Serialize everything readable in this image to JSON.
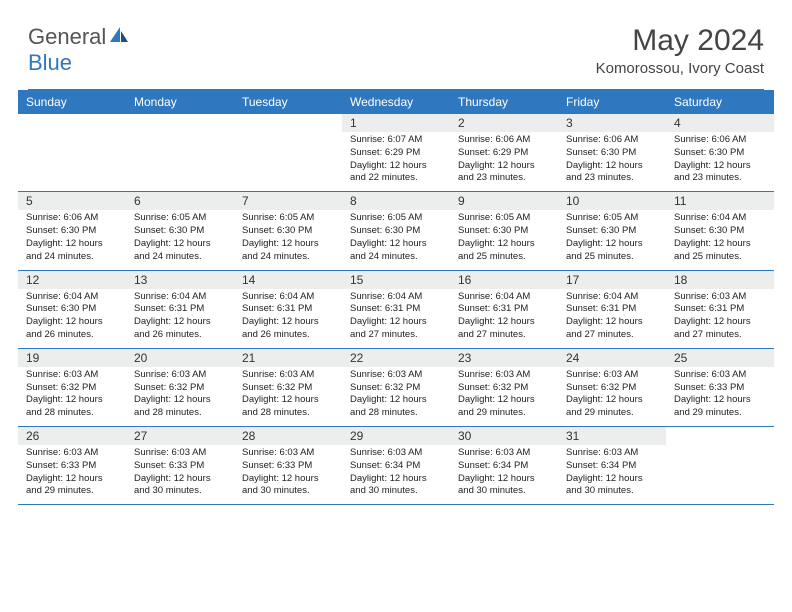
{
  "brand": {
    "part1": "General",
    "part2": "Blue"
  },
  "title": "May 2024",
  "location": "Komorossou, Ivory Coast",
  "colors": {
    "accent": "#2f78bf",
    "header_bg": "#2f78bf",
    "header_fg": "#ffffff",
    "daynum_bg": "#eceded",
    "text": "#222222",
    "title_text": "#444444",
    "divider": "#2f78bf"
  },
  "day_headers": [
    "Sunday",
    "Monday",
    "Tuesday",
    "Wednesday",
    "Thursday",
    "Friday",
    "Saturday"
  ],
  "weeks": [
    [
      {
        "n": "",
        "sr": "",
        "ss": "",
        "dl": ""
      },
      {
        "n": "",
        "sr": "",
        "ss": "",
        "dl": ""
      },
      {
        "n": "",
        "sr": "",
        "ss": "",
        "dl": ""
      },
      {
        "n": "1",
        "sr": "6:07 AM",
        "ss": "6:29 PM",
        "dl": "12 hours and 22 minutes."
      },
      {
        "n": "2",
        "sr": "6:06 AM",
        "ss": "6:29 PM",
        "dl": "12 hours and 23 minutes."
      },
      {
        "n": "3",
        "sr": "6:06 AM",
        "ss": "6:30 PM",
        "dl": "12 hours and 23 minutes."
      },
      {
        "n": "4",
        "sr": "6:06 AM",
        "ss": "6:30 PM",
        "dl": "12 hours and 23 minutes."
      }
    ],
    [
      {
        "n": "5",
        "sr": "6:06 AM",
        "ss": "6:30 PM",
        "dl": "12 hours and 24 minutes."
      },
      {
        "n": "6",
        "sr": "6:05 AM",
        "ss": "6:30 PM",
        "dl": "12 hours and 24 minutes."
      },
      {
        "n": "7",
        "sr": "6:05 AM",
        "ss": "6:30 PM",
        "dl": "12 hours and 24 minutes."
      },
      {
        "n": "8",
        "sr": "6:05 AM",
        "ss": "6:30 PM",
        "dl": "12 hours and 24 minutes."
      },
      {
        "n": "9",
        "sr": "6:05 AM",
        "ss": "6:30 PM",
        "dl": "12 hours and 25 minutes."
      },
      {
        "n": "10",
        "sr": "6:05 AM",
        "ss": "6:30 PM",
        "dl": "12 hours and 25 minutes."
      },
      {
        "n": "11",
        "sr": "6:04 AM",
        "ss": "6:30 PM",
        "dl": "12 hours and 25 minutes."
      }
    ],
    [
      {
        "n": "12",
        "sr": "6:04 AM",
        "ss": "6:30 PM",
        "dl": "12 hours and 26 minutes."
      },
      {
        "n": "13",
        "sr": "6:04 AM",
        "ss": "6:31 PM",
        "dl": "12 hours and 26 minutes."
      },
      {
        "n": "14",
        "sr": "6:04 AM",
        "ss": "6:31 PM",
        "dl": "12 hours and 26 minutes."
      },
      {
        "n": "15",
        "sr": "6:04 AM",
        "ss": "6:31 PM",
        "dl": "12 hours and 27 minutes."
      },
      {
        "n": "16",
        "sr": "6:04 AM",
        "ss": "6:31 PM",
        "dl": "12 hours and 27 minutes."
      },
      {
        "n": "17",
        "sr": "6:04 AM",
        "ss": "6:31 PM",
        "dl": "12 hours and 27 minutes."
      },
      {
        "n": "18",
        "sr": "6:03 AM",
        "ss": "6:31 PM",
        "dl": "12 hours and 27 minutes."
      }
    ],
    [
      {
        "n": "19",
        "sr": "6:03 AM",
        "ss": "6:32 PM",
        "dl": "12 hours and 28 minutes."
      },
      {
        "n": "20",
        "sr": "6:03 AM",
        "ss": "6:32 PM",
        "dl": "12 hours and 28 minutes."
      },
      {
        "n": "21",
        "sr": "6:03 AM",
        "ss": "6:32 PM",
        "dl": "12 hours and 28 minutes."
      },
      {
        "n": "22",
        "sr": "6:03 AM",
        "ss": "6:32 PM",
        "dl": "12 hours and 28 minutes."
      },
      {
        "n": "23",
        "sr": "6:03 AM",
        "ss": "6:32 PM",
        "dl": "12 hours and 29 minutes."
      },
      {
        "n": "24",
        "sr": "6:03 AM",
        "ss": "6:32 PM",
        "dl": "12 hours and 29 minutes."
      },
      {
        "n": "25",
        "sr": "6:03 AM",
        "ss": "6:33 PM",
        "dl": "12 hours and 29 minutes."
      }
    ],
    [
      {
        "n": "26",
        "sr": "6:03 AM",
        "ss": "6:33 PM",
        "dl": "12 hours and 29 minutes."
      },
      {
        "n": "27",
        "sr": "6:03 AM",
        "ss": "6:33 PM",
        "dl": "12 hours and 30 minutes."
      },
      {
        "n": "28",
        "sr": "6:03 AM",
        "ss": "6:33 PM",
        "dl": "12 hours and 30 minutes."
      },
      {
        "n": "29",
        "sr": "6:03 AM",
        "ss": "6:34 PM",
        "dl": "12 hours and 30 minutes."
      },
      {
        "n": "30",
        "sr": "6:03 AM",
        "ss": "6:34 PM",
        "dl": "12 hours and 30 minutes."
      },
      {
        "n": "31",
        "sr": "6:03 AM",
        "ss": "6:34 PM",
        "dl": "12 hours and 30 minutes."
      },
      {
        "n": "",
        "sr": "",
        "ss": "",
        "dl": ""
      }
    ]
  ],
  "labels": {
    "sunrise": "Sunrise:",
    "sunset": "Sunset:",
    "daylight": "Daylight:"
  }
}
